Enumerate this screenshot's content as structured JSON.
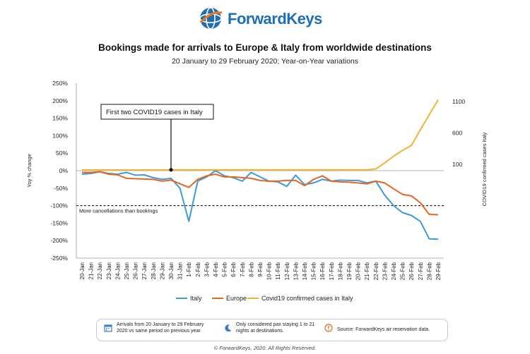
{
  "logo": {
    "text": "ForwardKeys"
  },
  "title": "Bookings made for arrivals to Europe & Italy from worldwide destinations",
  "subtitle": "20 January to 29 February 2020; Year-on-Year variations",
  "chart_data": {
    "type": "line",
    "ylabel": "Yoy % change",
    "y2label": "COVID19 confirmed cases Italy",
    "ylim": [
      -250,
      250
    ],
    "yticks": [
      "250%",
      "200%",
      "150%",
      "100%",
      "50%",
      "0%",
      "-50%",
      "-100%",
      "-150%",
      "-200%",
      "-250%"
    ],
    "y2ticks": [
      "1100",
      "600",
      "100"
    ],
    "categories": [
      "20-Jan",
      "21-Jan",
      "22-Jan",
      "23-Jan",
      "24-Jan",
      "25-Jan",
      "26-Jan",
      "27-Jan",
      "28-Jan",
      "29-Jan",
      "30-Jan",
      "31-Jan",
      "1-Feb",
      "2-Feb",
      "3-Feb",
      "4-Feb",
      "5-Feb",
      "6-Feb",
      "7-Feb",
      "8-Feb",
      "9-Feb",
      "10-Feb",
      "11-Feb",
      "12-Feb",
      "13-Feb",
      "14-Feb",
      "15-Feb",
      "16-Feb",
      "17-Feb",
      "18-Feb",
      "19-Feb",
      "20-Feb",
      "21-Feb",
      "22-Feb",
      "23-Feb",
      "24-Feb",
      "25-Feb",
      "26-Feb",
      "27-Feb",
      "28-Feb",
      "29-Feb"
    ],
    "series": [
      {
        "name": "Italy",
        "color": "#3b9ad9",
        "values": [
          -10,
          -8,
          -3,
          -8,
          -10,
          -5,
          -13,
          -12,
          -20,
          -25,
          -22,
          -50,
          -145,
          -30,
          -18,
          0,
          -15,
          -20,
          -30,
          -5,
          -18,
          -30,
          -32,
          -45,
          -13,
          -40,
          -35,
          -25,
          -30,
          -27,
          -28,
          -28,
          -35,
          -30,
          -70,
          -100,
          -120,
          -128,
          -145,
          -195,
          -196
        ]
      },
      {
        "name": "Europe",
        "color": "#e8651f",
        "values": [
          -5,
          -5,
          -3,
          -10,
          -12,
          -22,
          -23,
          -24,
          -25,
          -30,
          -27,
          -37,
          -48,
          -25,
          -15,
          -10,
          -18,
          -18,
          -20,
          -22,
          -28,
          -30,
          -30,
          -28,
          -28,
          -43,
          -25,
          -15,
          -30,
          -32,
          -33,
          -35,
          -38,
          -30,
          -35,
          -52,
          -68,
          -72,
          -92,
          -125,
          -126
        ]
      },
      {
        "name": "Covid19 confirmed cases in Italy",
        "color": "#f2b233",
        "axis": "right",
        "values": [
          0,
          0,
          0,
          0,
          0,
          0,
          0,
          0,
          0,
          0,
          2,
          2,
          2,
          2,
          2,
          2,
          3,
          3,
          3,
          3,
          3,
          3,
          3,
          3,
          3,
          3,
          3,
          3,
          3,
          3,
          3,
          3,
          3,
          17,
          124,
          229,
          322,
          400,
          650,
          888,
          1128
        ]
      }
    ],
    "reference_line": {
      "value": -100,
      "label": "More cancellations than bookings"
    },
    "annotation": {
      "text": "First two COVID19 cases in Italy",
      "category": "30-Jan"
    },
    "grid": false,
    "legend_position": "bottom"
  },
  "info": {
    "item1": "Arrivals from 20 January to 29 February 2020 vs same period on previous year",
    "item2": "Only considered pax staying 1 to 21 nights at destinations.",
    "item3": "Source: ForwardKeys air reservation data."
  },
  "footer": "© ForwardKeys, 2020. All Rights Reserved."
}
